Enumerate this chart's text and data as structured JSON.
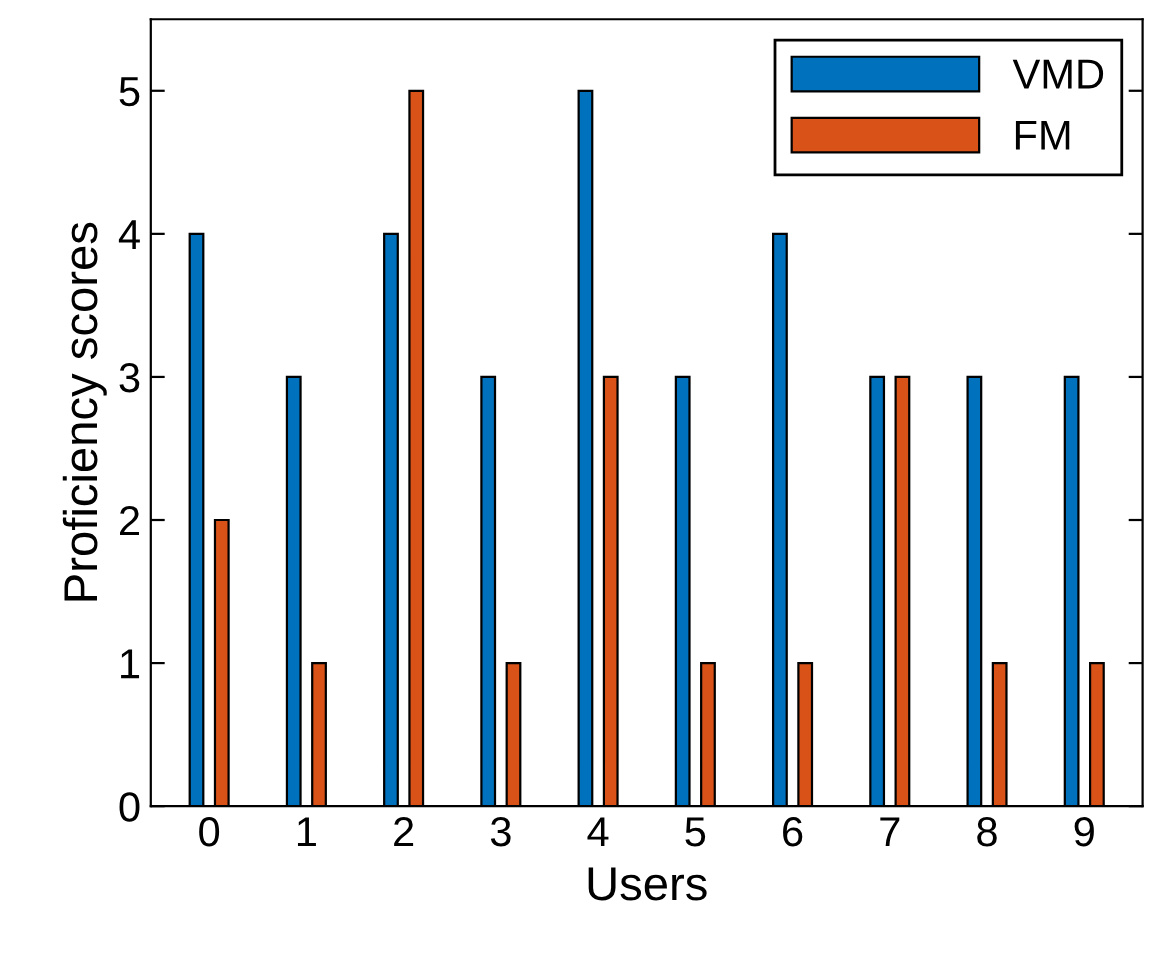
{
  "chart_data": {
    "type": "bar",
    "xlabel": "Users",
    "ylabel": "Proficiency scores",
    "categories": [
      "0",
      "1",
      "2",
      "3",
      "4",
      "5",
      "6",
      "7",
      "8",
      "9"
    ],
    "series": [
      {
        "name": "VMD",
        "color": "#0072bd",
        "values": [
          4,
          3,
          4,
          3,
          5,
          3,
          4,
          3,
          3,
          3
        ]
      },
      {
        "name": "FM",
        "color": "#d95319",
        "values": [
          2,
          1,
          5,
          1,
          3,
          1,
          1,
          3,
          1,
          1
        ]
      }
    ],
    "ylim": [
      0,
      5.5
    ],
    "yticks": [
      0,
      1,
      2,
      3,
      4,
      5
    ],
    "legend": "top right",
    "grid": false
  }
}
